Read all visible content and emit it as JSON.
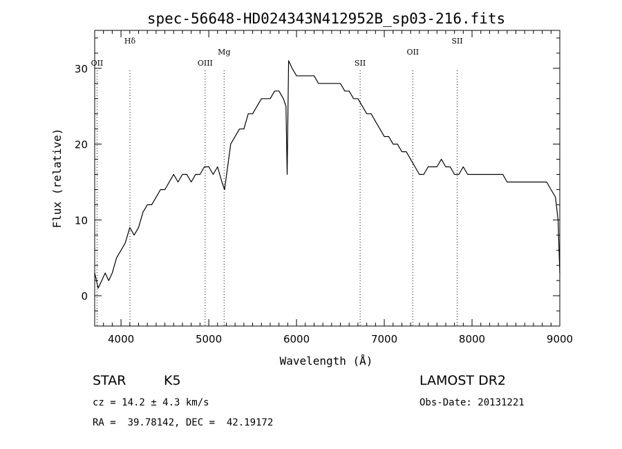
{
  "chart_data": {
    "type": "line",
    "title": "spec-56648-HD024343N412952B_sp03-216.fits",
    "xlabel": "Wavelength (Å)",
    "ylabel": "Flux (relative)",
    "xlim": [
      3700,
      9000
    ],
    "ylim": [
      -4,
      35
    ],
    "x_ticks": [
      4000,
      5000,
      6000,
      7000,
      8000,
      9000
    ],
    "y_ticks": [
      0,
      10,
      20,
      30
    ],
    "grid": false,
    "series": [
      {
        "x": [
          3700,
          3740,
          3780,
          3820,
          3860,
          3900,
          3950,
          4000,
          4050,
          4100,
          4150,
          4200,
          4250,
          4300,
          4350,
          4400,
          4450,
          4500,
          4550,
          4600,
          4650,
          4700,
          4750,
          4800,
          4850,
          4900,
          4950,
          5000,
          5050,
          5100,
          5150,
          5180,
          5250,
          5300,
          5350,
          5400,
          5450,
          5500,
          5550,
          5600,
          5650,
          5700,
          5750,
          5800,
          5850,
          5880,
          5893,
          5910,
          5950,
          6000,
          6050,
          6100,
          6150,
          6200,
          6250,
          6300,
          6350,
          6400,
          6450,
          6500,
          6550,
          6600,
          6650,
          6700,
          6750,
          6800,
          6850,
          6900,
          6950,
          7000,
          7050,
          7100,
          7150,
          7200,
          7250,
          7300,
          7350,
          7400,
          7450,
          7500,
          7550,
          7600,
          7650,
          7700,
          7750,
          7800,
          7850,
          7900,
          7950,
          8000,
          8050,
          8100,
          8150,
          8200,
          8250,
          8300,
          8350,
          8400,
          8450,
          8500,
          8550,
          8600,
          8650,
          8700,
          8750,
          8800,
          8850,
          8900,
          8950,
          8980,
          9000
        ],
        "y": [
          3,
          1,
          2,
          3,
          2,
          3,
          5,
          6,
          7,
          9,
          8,
          9,
          11,
          12,
          12,
          13,
          14,
          14,
          15,
          16,
          15,
          16,
          16,
          15,
          16,
          16,
          17,
          17,
          16,
          17,
          15,
          14,
          20,
          21,
          22,
          22,
          24,
          24,
          25,
          26,
          26,
          26,
          27,
          27,
          26,
          25,
          16,
          31,
          30,
          29,
          29,
          29,
          29,
          29,
          28,
          28,
          28,
          28,
          28,
          28,
          27,
          27,
          26,
          26,
          25,
          24,
          24,
          23,
          22,
          21,
          21,
          20,
          20,
          19,
          19,
          18,
          17,
          16,
          16,
          17,
          17,
          17,
          18,
          17,
          17,
          16,
          16,
          17,
          16,
          16,
          16,
          16,
          16,
          16,
          16,
          16,
          16,
          15,
          15,
          15,
          15,
          15,
          15,
          15,
          15,
          15,
          15,
          14,
          13,
          10,
          3
        ]
      }
    ],
    "line_markers": [
      {
        "label": "OII",
        "x": 3727
      },
      {
        "label": "Hδ",
        "x": 4102
      },
      {
        "label": "OIII",
        "x": 4959
      },
      {
        "label": "Mg",
        "x": 5175
      },
      {
        "label": "SII",
        "x": 6725
      },
      {
        "label": "OII",
        "x": 7325
      },
      {
        "label": "SII",
        "x": 7830
      }
    ]
  },
  "footer": {
    "object_class": "STAR",
    "subclass": "K5",
    "survey": "LAMOST DR2",
    "cz": "cz = 14.2 ± 4.3 km/s",
    "obs_date": "Obs-Date: 20131221",
    "coords": "RA =  39.78142, DEC =  42.19172"
  }
}
